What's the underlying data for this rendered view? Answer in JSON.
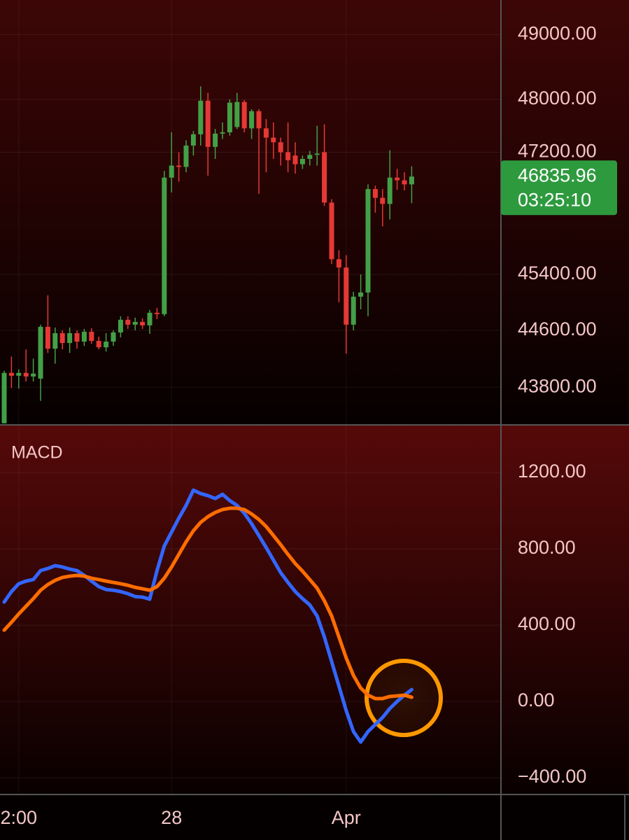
{
  "chart_data": [
    {
      "type": "candlestick",
      "log_scale": true,
      "ylim": [
        43278,
        49542
      ],
      "yticks": [
        {
          "value": 49000,
          "label": "49000.00"
        },
        {
          "value": 48000,
          "label": "48000.00"
        },
        {
          "value": 47200,
          "label": "47200.00"
        },
        {
          "value": 45400,
          "label": "45400.00"
        },
        {
          "value": 44600,
          "label": "44600.00"
        },
        {
          "value": 43800,
          "label": "43800.00"
        }
      ],
      "grid": true,
      "up_color": "#43a047",
      "down_color": "#e53935",
      "open": [
        43300,
        44000,
        43960,
        44000,
        43950,
        43920,
        44650,
        44340,
        44560,
        44420,
        44560,
        44440,
        44580,
        44450,
        44360,
        44440,
        44570,
        44750,
        44680,
        44720,
        44670,
        44850,
        44830,
        46820,
        47000,
        46980,
        47300,
        47470,
        47980,
        47280,
        47480,
        47500,
        47580,
        47960,
        47560,
        47820,
        47560,
        47420,
        47350,
        47200,
        47150,
        47020,
        47100,
        47160,
        47200,
        46450,
        45620,
        45500,
        44680,
        45080,
        45140,
        46650,
        46520,
        46430,
        46820,
        46780,
        46720
      ],
      "high": [
        44030,
        44230,
        44050,
        44330,
        44200,
        44680,
        45100,
        44640,
        44600,
        44640,
        44600,
        44620,
        44630,
        44510,
        44560,
        44600,
        44800,
        44800,
        44780,
        44770,
        44890,
        44920,
        46920,
        47500,
        47200,
        47380,
        47520,
        48200,
        48100,
        47550,
        47650,
        48000,
        48100,
        47990,
        47850,
        47850,
        47700,
        47650,
        47420,
        47650,
        47350,
        47150,
        47220,
        47600,
        47620,
        46500,
        45750,
        45680,
        45150,
        45400,
        46720,
        46700,
        46650,
        47230,
        46950,
        46900,
        46990
      ],
      "low": [
        43300,
        43790,
        43780,
        43880,
        43880,
        43610,
        44280,
        44130,
        44330,
        44280,
        44340,
        44380,
        44410,
        44330,
        44300,
        44380,
        44500,
        44620,
        44600,
        44620,
        44550,
        44760,
        44800,
        46600,
        46760,
        46900,
        47150,
        47300,
        46850,
        47100,
        47400,
        47450,
        47550,
        47500,
        47400,
        46580,
        46900,
        47100,
        47000,
        46900,
        46880,
        46950,
        47000,
        47000,
        46400,
        45550,
        45000,
        44270,
        44600,
        44900,
        44800,
        46300,
        46100,
        46200,
        46640,
        46630,
        46440
      ],
      "close": [
        44000,
        43960,
        44000,
        43950,
        43990,
        44650,
        44340,
        44560,
        44420,
        44560,
        44440,
        44580,
        44450,
        44360,
        44440,
        44570,
        44750,
        44680,
        44720,
        44670,
        44850,
        44830,
        46820,
        47000,
        46980,
        47300,
        47470,
        47980,
        47280,
        47480,
        47500,
        47950,
        47960,
        47560,
        47820,
        47560,
        47420,
        47350,
        47200,
        47080,
        47020,
        47100,
        47160,
        47180,
        46450,
        45620,
        45500,
        44680,
        45080,
        45140,
        46650,
        46520,
        46430,
        46820,
        46780,
        46720,
        46835.96
      ],
      "last_price": 46835.96,
      "countdown": "03:25:10",
      "last_color": "#2e9a3e"
    },
    {
      "type": "line",
      "title": "MACD",
      "ylim": [
        -488,
        1450
      ],
      "yticks": [
        {
          "value": 1200,
          "label": "1200.00"
        },
        {
          "value": 800,
          "label": "800.00"
        },
        {
          "value": 400,
          "label": "400.00"
        },
        {
          "value": 0,
          "label": "0.00"
        },
        {
          "value": -400,
          "label": "−400.00"
        }
      ],
      "grid": true,
      "categories": [
        null,
        null,
        "2:00",
        null,
        null,
        null,
        null,
        null,
        null,
        null,
        null,
        null,
        null,
        null,
        null,
        null,
        null,
        null,
        null,
        null,
        null,
        null,
        null,
        "28",
        null,
        null,
        null,
        null,
        null,
        null,
        null,
        null,
        null,
        null,
        null,
        null,
        null,
        null,
        null,
        null,
        null,
        null,
        null,
        null,
        null,
        null,
        null,
        "Apr",
        null,
        null,
        null,
        null,
        null,
        null,
        null,
        null,
        null
      ],
      "series": [
        {
          "color": "#3366ff",
          "values": [
            521,
            576,
            617,
            631,
            639,
            686,
            697,
            712,
            705,
            694,
            686,
            661,
            631,
            602,
            587,
            583,
            576,
            565,
            550,
            547,
            536,
            686,
            815,
            888,
            961,
            1028,
            1108,
            1090,
            1079,
            1064,
            1086,
            1053,
            1028,
            987,
            932,
            870,
            807,
            741,
            675,
            624,
            576,
            539,
            506,
            448,
            338,
            209,
            81,
            -48,
            -158,
            -213,
            -158,
            -121,
            -84,
            -37,
            0,
            33,
            62
          ]
        },
        {
          "color": "#ff6d00",
          "values": [
            374,
            415,
            459,
            499,
            539,
            583,
            613,
            635,
            650,
            657,
            661,
            657,
            646,
            639,
            631,
            624,
            617,
            609,
            598,
            591,
            583,
            602,
            646,
            705,
            771,
            837,
            895,
            939,
            969,
            991,
            1006,
            1013,
            1013,
            1006,
            983,
            954,
            917,
            870,
            822,
            771,
            723,
            683,
            639,
            594,
            528,
            448,
            338,
            228,
            136,
            70,
            33,
            15,
            15,
            26,
            29,
            33,
            22
          ]
        }
      ]
    }
  ]
}
